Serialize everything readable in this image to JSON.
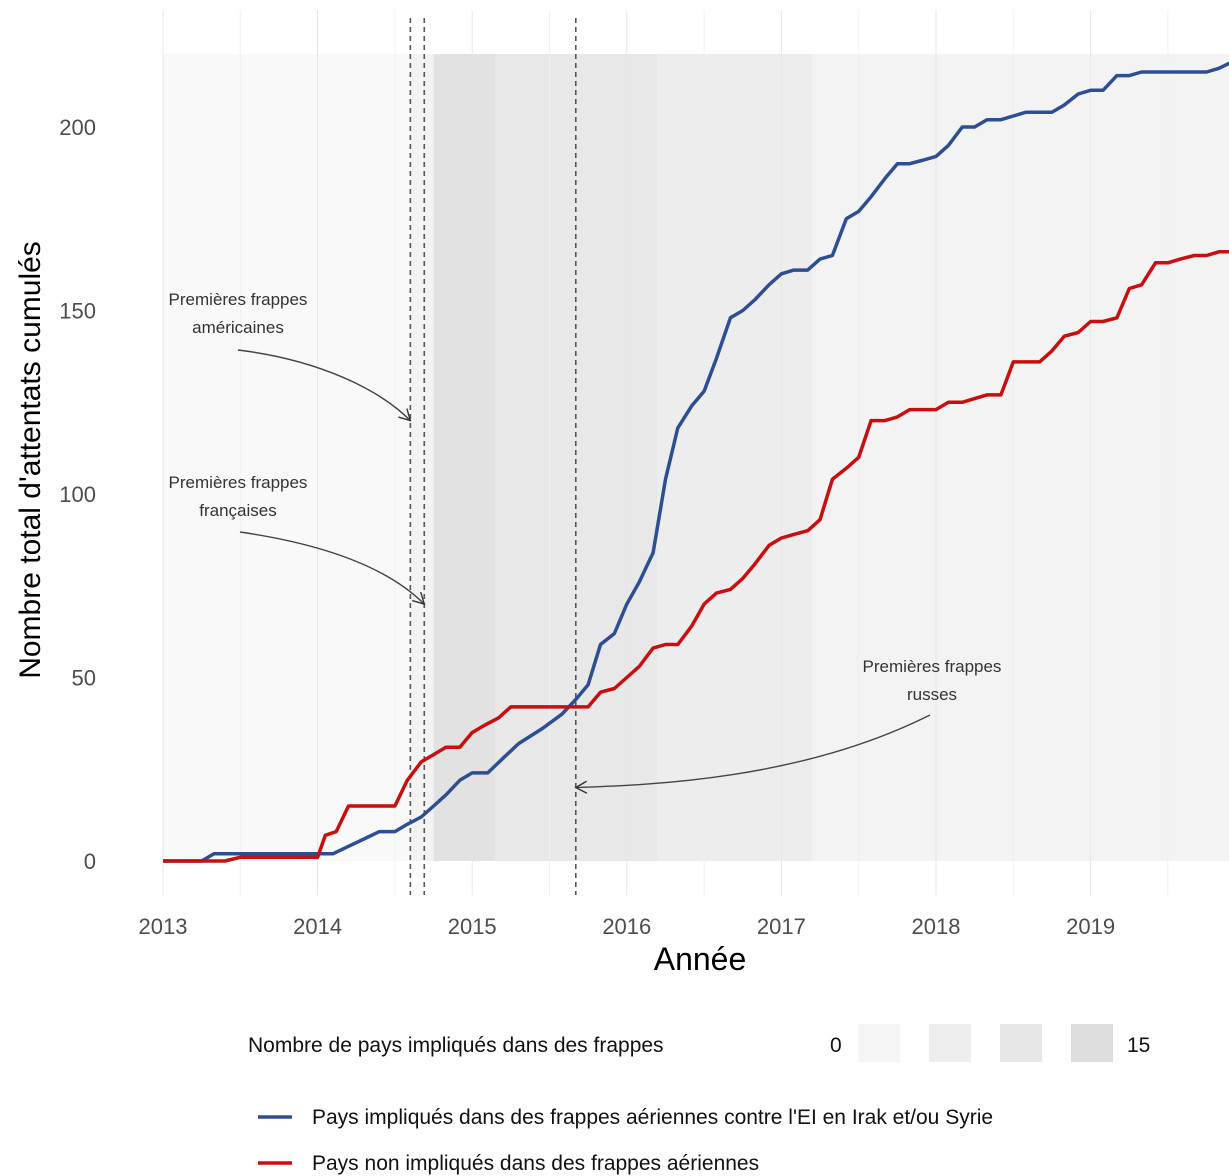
{
  "chart_data": {
    "type": "line",
    "xlabel": "Année",
    "ylabel": "Nombre total d'attentats cumulés",
    "xlim": [
      2013,
      2019.93
    ],
    "ylim": [
      -10,
      220
    ],
    "x_ticks": [
      2013,
      2014,
      2015,
      2016,
      2017,
      2018,
      2019
    ],
    "y_ticks": [
      0,
      50,
      100,
      150,
      200
    ],
    "grid": "vertical",
    "legend_position": "bottom",
    "fill_legend": {
      "title": "Nombre de pays impliqués dans des frappes",
      "min_label": "0",
      "max_label": "15",
      "swatch_colors": [
        "#f5f5f5",
        "#eeeeee",
        "#e7e7e7",
        "#dedede"
      ]
    },
    "background_bands": [
      {
        "x0": 2013.0,
        "x1": 2014.6,
        "level": 0
      },
      {
        "x0": 2014.6,
        "x1": 2014.75,
        "level": 1
      },
      {
        "x0": 2014.75,
        "x1": 2015.15,
        "level": 4
      },
      {
        "x0": 2015.15,
        "x1": 2016.2,
        "level": 3
      },
      {
        "x0": 2016.2,
        "x1": 2017.2,
        "level": 2
      },
      {
        "x0": 2017.2,
        "x1": 2019.93,
        "level": 1
      }
    ],
    "vlines": [
      2014.6,
      2014.69,
      2015.67
    ],
    "annotations": [
      {
        "lines": [
          "Premières frappes",
          "américaines"
        ],
        "target": [
          2014.6,
          120
        ]
      },
      {
        "lines": [
          "Premières frappes",
          "françaises"
        ],
        "target": [
          2014.69,
          70
        ]
      },
      {
        "lines": [
          "Premières frappes",
          "russes"
        ],
        "target": [
          2015.67,
          20
        ]
      }
    ],
    "series": [
      {
        "name": "Pays impliqués dans des frappes aériennes contre l'EI en Irak et/ou Syrie",
        "color": "#2e4e93",
        "points": [
          [
            2013.0,
            0
          ],
          [
            2013.25,
            0
          ],
          [
            2013.33,
            2
          ],
          [
            2013.5,
            2
          ],
          [
            2014.0,
            2
          ],
          [
            2014.1,
            2
          ],
          [
            2014.2,
            4
          ],
          [
            2014.3,
            6
          ],
          [
            2014.4,
            8
          ],
          [
            2014.5,
            8
          ],
          [
            2014.58,
            10
          ],
          [
            2014.67,
            12
          ],
          [
            2014.75,
            15
          ],
          [
            2014.83,
            18
          ],
          [
            2014.92,
            22
          ],
          [
            2015.0,
            24
          ],
          [
            2015.1,
            24
          ],
          [
            2015.2,
            28
          ],
          [
            2015.3,
            32
          ],
          [
            2015.45,
            36
          ],
          [
            2015.58,
            40
          ],
          [
            2015.67,
            44
          ],
          [
            2015.75,
            48
          ],
          [
            2015.83,
            59
          ],
          [
            2015.92,
            62
          ],
          [
            2016.0,
            70
          ],
          [
            2016.08,
            76
          ],
          [
            2016.17,
            84
          ],
          [
            2016.25,
            104
          ],
          [
            2016.33,
            118
          ],
          [
            2016.42,
            124
          ],
          [
            2016.5,
            128
          ],
          [
            2016.58,
            137
          ],
          [
            2016.67,
            148
          ],
          [
            2016.75,
            150
          ],
          [
            2016.83,
            153
          ],
          [
            2016.92,
            157
          ],
          [
            2017.0,
            160
          ],
          [
            2017.08,
            161
          ],
          [
            2017.17,
            161
          ],
          [
            2017.25,
            164
          ],
          [
            2017.33,
            165
          ],
          [
            2017.42,
            175
          ],
          [
            2017.5,
            177
          ],
          [
            2017.58,
            181
          ],
          [
            2017.67,
            186
          ],
          [
            2017.75,
            190
          ],
          [
            2017.83,
            190
          ],
          [
            2017.92,
            191
          ],
          [
            2018.0,
            192
          ],
          [
            2018.08,
            195
          ],
          [
            2018.17,
            200
          ],
          [
            2018.25,
            200
          ],
          [
            2018.33,
            202
          ],
          [
            2018.42,
            202
          ],
          [
            2018.5,
            203
          ],
          [
            2018.58,
            204
          ],
          [
            2018.67,
            204
          ],
          [
            2018.75,
            204
          ],
          [
            2018.83,
            206
          ],
          [
            2018.92,
            209
          ],
          [
            2019.0,
            210
          ],
          [
            2019.08,
            210
          ],
          [
            2019.17,
            214
          ],
          [
            2019.25,
            214
          ],
          [
            2019.33,
            215
          ],
          [
            2019.5,
            215
          ],
          [
            2019.67,
            215
          ],
          [
            2019.75,
            215
          ],
          [
            2019.83,
            216
          ],
          [
            2019.93,
            218
          ]
        ]
      },
      {
        "name": "Pays non impliqués dans des frappes aériennes",
        "color": "#c80e0e",
        "points": [
          [
            2013.0,
            0
          ],
          [
            2013.4,
            0
          ],
          [
            2013.5,
            1
          ],
          [
            2014.0,
            1
          ],
          [
            2014.05,
            7
          ],
          [
            2014.12,
            8
          ],
          [
            2014.2,
            15
          ],
          [
            2014.4,
            15
          ],
          [
            2014.5,
            15
          ],
          [
            2014.58,
            22
          ],
          [
            2014.67,
            27
          ],
          [
            2014.75,
            29
          ],
          [
            2014.83,
            31
          ],
          [
            2014.92,
            31
          ],
          [
            2015.0,
            35
          ],
          [
            2015.08,
            37
          ],
          [
            2015.17,
            39
          ],
          [
            2015.25,
            42
          ],
          [
            2015.5,
            42
          ],
          [
            2015.67,
            42
          ],
          [
            2015.75,
            42
          ],
          [
            2015.83,
            46
          ],
          [
            2015.92,
            47
          ],
          [
            2016.0,
            50
          ],
          [
            2016.08,
            53
          ],
          [
            2016.17,
            58
          ],
          [
            2016.25,
            59
          ],
          [
            2016.33,
            59
          ],
          [
            2016.42,
            64
          ],
          [
            2016.5,
            70
          ],
          [
            2016.58,
            73
          ],
          [
            2016.67,
            74
          ],
          [
            2016.75,
            77
          ],
          [
            2016.83,
            81
          ],
          [
            2016.92,
            86
          ],
          [
            2017.0,
            88
          ],
          [
            2017.08,
            89
          ],
          [
            2017.17,
            90
          ],
          [
            2017.25,
            93
          ],
          [
            2017.33,
            104
          ],
          [
            2017.42,
            107
          ],
          [
            2017.5,
            110
          ],
          [
            2017.58,
            120
          ],
          [
            2017.67,
            120
          ],
          [
            2017.75,
            121
          ],
          [
            2017.83,
            123
          ],
          [
            2017.92,
            123
          ],
          [
            2018.0,
            123
          ],
          [
            2018.08,
            125
          ],
          [
            2018.17,
            125
          ],
          [
            2018.25,
            126
          ],
          [
            2018.33,
            127
          ],
          [
            2018.42,
            127
          ],
          [
            2018.5,
            136
          ],
          [
            2018.58,
            136
          ],
          [
            2018.67,
            136
          ],
          [
            2018.75,
            139
          ],
          [
            2018.83,
            143
          ],
          [
            2018.92,
            144
          ],
          [
            2019.0,
            147
          ],
          [
            2019.08,
            147
          ],
          [
            2019.17,
            148
          ],
          [
            2019.25,
            156
          ],
          [
            2019.33,
            157
          ],
          [
            2019.42,
            163
          ],
          [
            2019.5,
            163
          ],
          [
            2019.58,
            164
          ],
          [
            2019.67,
            165
          ],
          [
            2019.75,
            165
          ],
          [
            2019.83,
            166
          ],
          [
            2019.93,
            166
          ]
        ]
      }
    ]
  }
}
